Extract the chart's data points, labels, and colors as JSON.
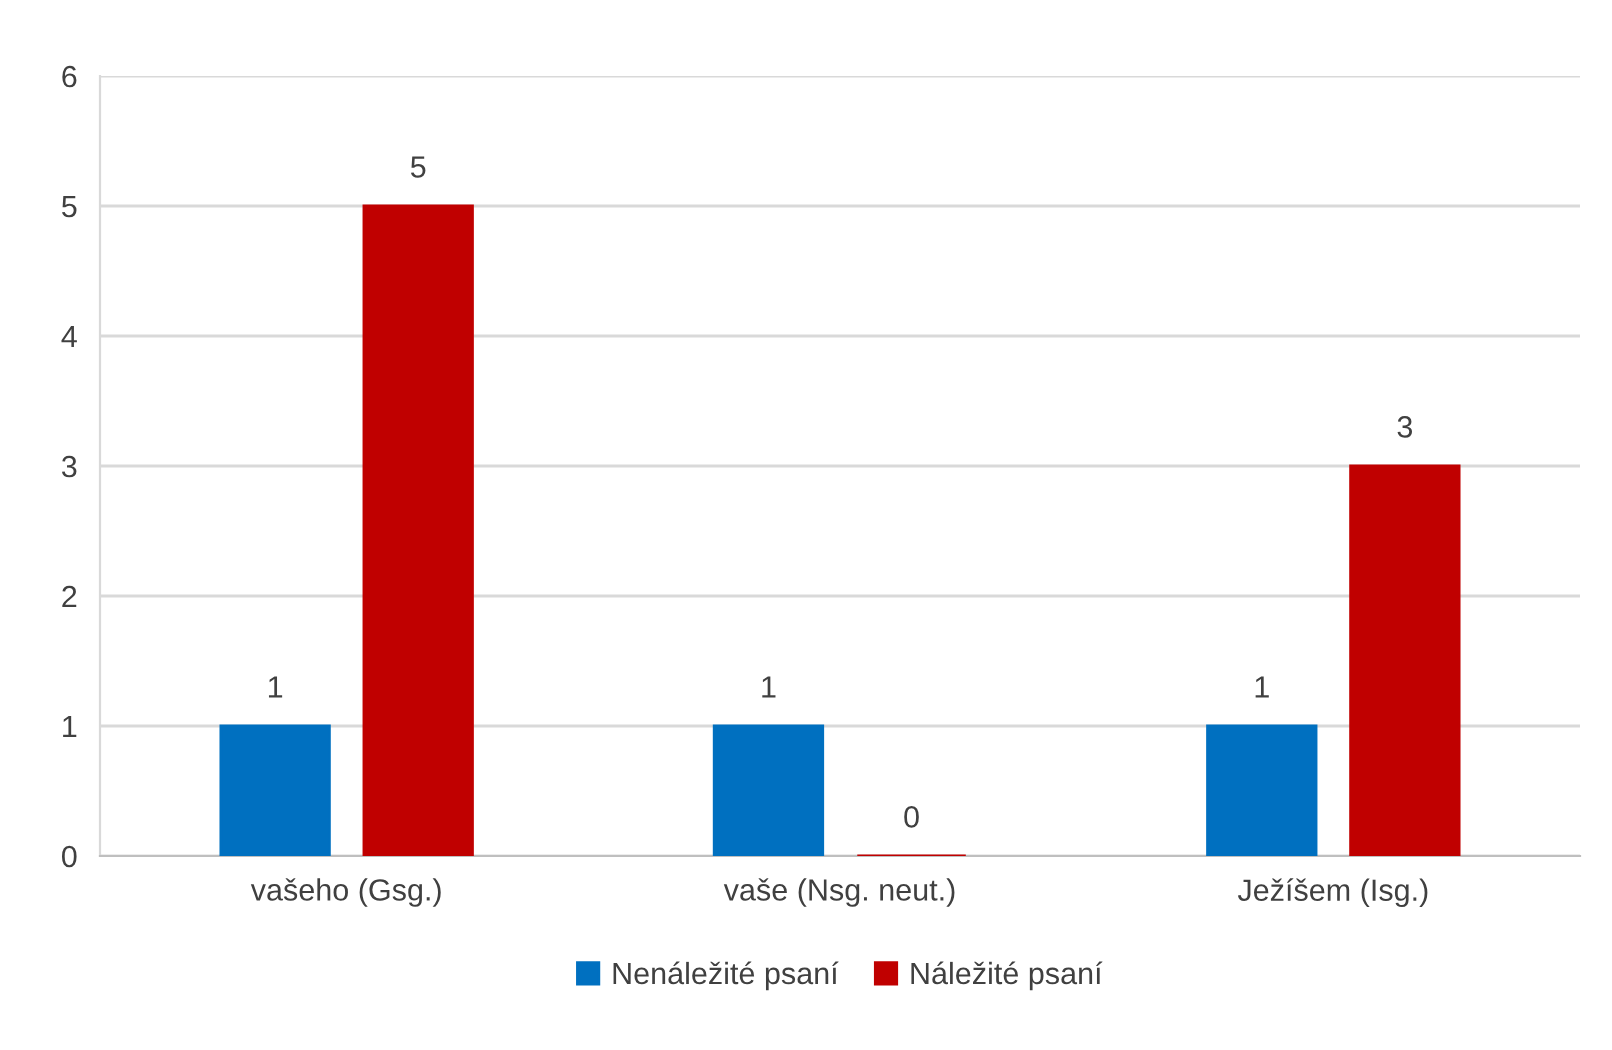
{
  "chart_data": {
    "type": "bar",
    "categories": [
      "vašeho (Gsg.)",
      "vaše (Nsg. neut.)",
      "Ježíšem (Isg.)"
    ],
    "series": [
      {
        "name": "Nenáležité psaní",
        "color": "#0070c0",
        "values": [
          1,
          1,
          1
        ]
      },
      {
        "name": "Náležité psaní",
        "color": "#c00000",
        "values": [
          5,
          0,
          3
        ]
      }
    ],
    "ylim": [
      0,
      6
    ],
    "yticks": [
      0,
      1,
      2,
      3,
      4,
      5,
      6
    ],
    "grid": "y",
    "legend": "bottom",
    "data_labels": true
  }
}
